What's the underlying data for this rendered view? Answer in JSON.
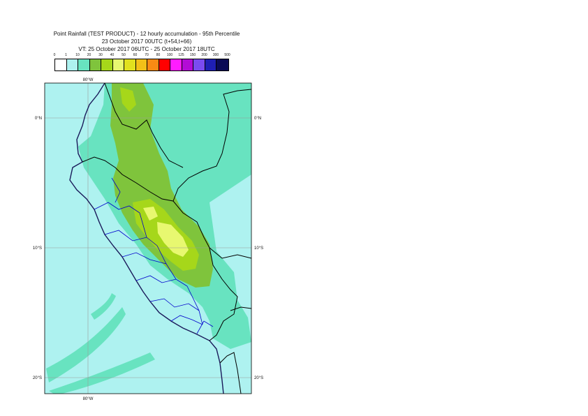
{
  "title": {
    "line1": "Point Rainfall (TEST PRODUCT) - 12 hourly accumulation - 95th Percentile",
    "line2": "23 October 2017 00UTC (t+54,t+66)",
    "line3": "VT: 25 October 2017 06UTC - 25 October 2017 18UTC"
  },
  "legend": {
    "labels": [
      "0",
      "1",
      "10",
      "20",
      "30",
      "40",
      "50",
      "60",
      "70",
      "80",
      "100",
      "125",
      "150",
      "200",
      "300",
      "500"
    ],
    "colors": [
      "#ffffff",
      "#aef2f0",
      "#68e3c0",
      "#7fc43c",
      "#a6d71a",
      "#e8f870",
      "#e1e11e",
      "#f2c018",
      "#f98a14",
      "#ff0000",
      "#ff1cff",
      "#b30cd6",
      "#7b4bf0",
      "#1f1fb4",
      "#0a0a55"
    ]
  },
  "map": {
    "lon_labels": {
      "top": "80°W",
      "bottom": "80°W"
    },
    "lat_labels": {
      "left": [
        "0°N",
        "10°S",
        "20°S"
      ],
      "right": [
        "0°N",
        "10°S",
        "20°S"
      ]
    },
    "colors": {
      "sea_light": "#aef2f0",
      "land_teal": "#68e3c0",
      "green": "#7fc43c",
      "lime": "#a6d71a",
      "pale": "#e8f870",
      "coast": "#1a1a5a",
      "border": "#000000",
      "region": "#0000cc"
    }
  }
}
